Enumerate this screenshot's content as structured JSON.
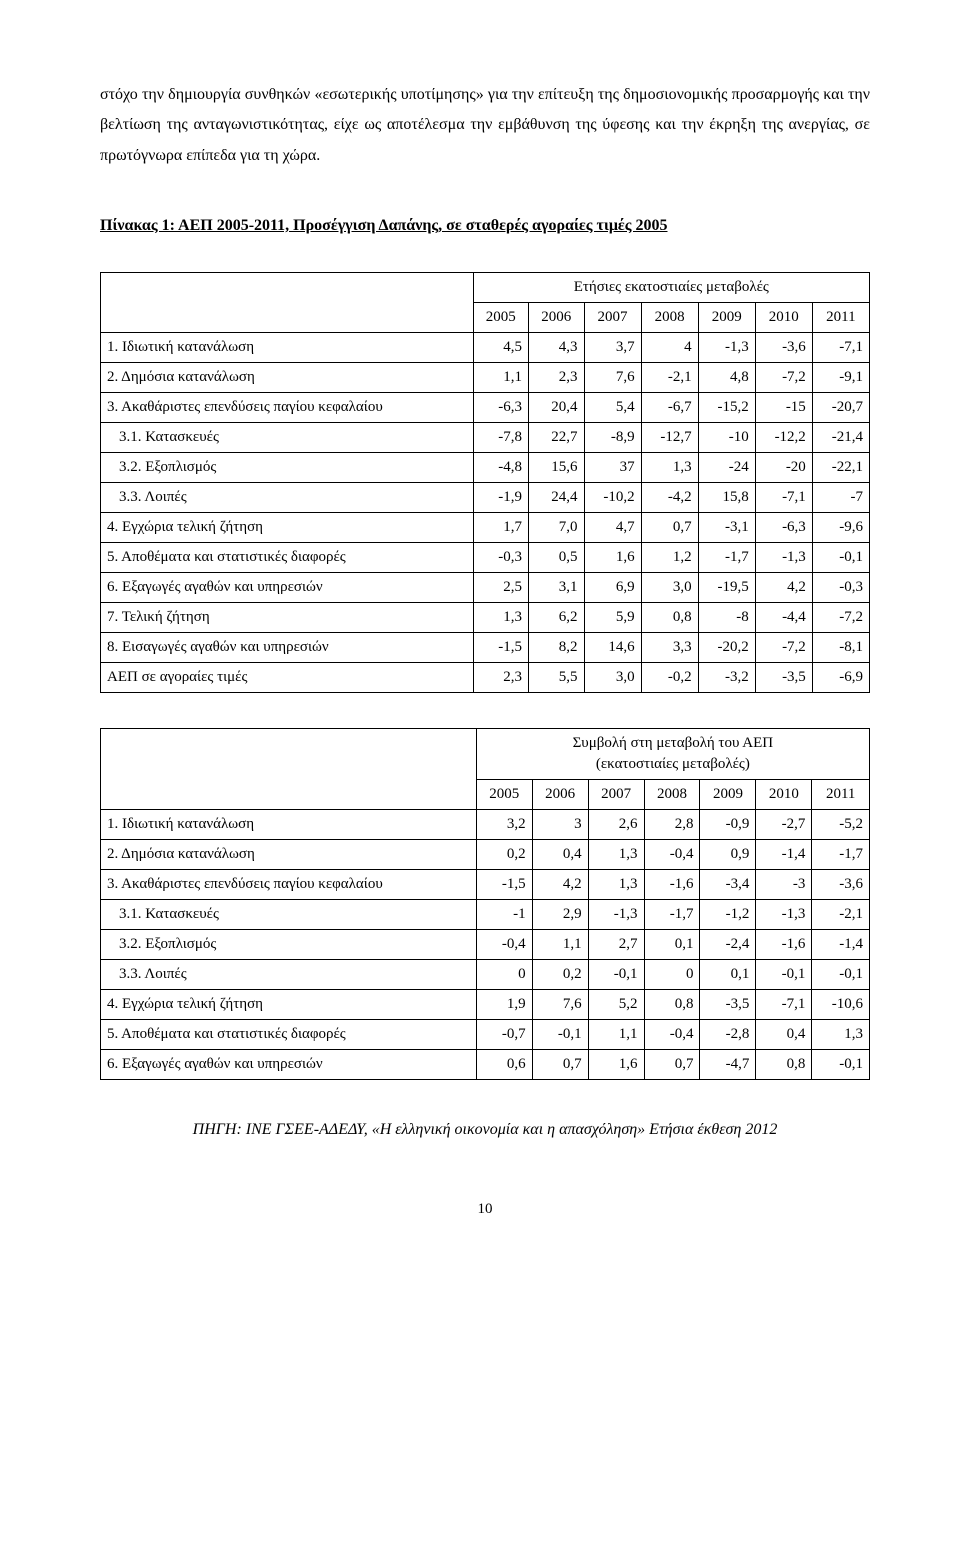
{
  "paragraph": "στόχο την δημιουργία συνθηκών «εσωτερικής υποτίμησης» για την επίτευξη της δημοσιονομικής προσαρμογής και την βελτίωση της ανταγωνιστικότητας, είχε ως αποτέλεσμα την εμβάθυνση της ύφεσης και την έκρηξη της ανεργίας, σε πρωτόγνωρα επίπεδα για τη χώρα.",
  "heading": "Πίνακας 1: ΑΕΠ 2005-2011, Προσέγγιση Δαπάνης, σε σταθερές αγοραίες τιμές 2005",
  "years": [
    "2005",
    "2006",
    "2007",
    "2008",
    "2009",
    "2010",
    "2011"
  ],
  "table1": {
    "spanhdr": "Ετήσιες εκατοστιαίες μεταβολές",
    "rows": [
      {
        "label": "1. Ιδιωτική κατανάλωση",
        "vals": [
          "4,5",
          "4,3",
          "3,7",
          "4",
          "-1,3",
          "-3,6",
          "-7,1"
        ]
      },
      {
        "label": "2. Δημόσια κατανάλωση",
        "vals": [
          "1,1",
          "2,3",
          "7,6",
          "-2,1",
          "4,8",
          "-7,2",
          "-9,1"
        ]
      },
      {
        "label": "3. Ακαθάριστες επενδύσεις παγίου κεφαλαίου",
        "vals": [
          "-6,3",
          "20,4",
          "5,4",
          "-6,7",
          "-15,2",
          "-15",
          "-20,7"
        ]
      },
      {
        "label": "3.1. Κατασκευές",
        "indent": true,
        "vals": [
          "-7,8",
          "22,7",
          "-8,9",
          "-12,7",
          "-10",
          "-12,2",
          "-21,4"
        ]
      },
      {
        "label": "3.2. Εξοπλισμός",
        "indent": true,
        "vals": [
          "-4,8",
          "15,6",
          "37",
          "1,3",
          "-24",
          "-20",
          "-22,1"
        ]
      },
      {
        "label": "3.3. Λοιπές",
        "indent": true,
        "vals": [
          "-1,9",
          "24,4",
          "-10,2",
          "-4,2",
          "15,8",
          "-7,1",
          "-7"
        ]
      },
      {
        "label": "4. Εγχώρια τελική ζήτηση",
        "vals": [
          "1,7",
          "7,0",
          "4,7",
          "0,7",
          "-3,1",
          "-6,3",
          "-9,6"
        ]
      },
      {
        "label": "5. Αποθέματα και στατιστικές διαφορές",
        "vals": [
          "-0,3",
          "0,5",
          "1,6",
          "1,2",
          "-1,7",
          "-1,3",
          "-0,1"
        ]
      },
      {
        "label": "6. Εξαγωγές αγαθών και υπηρεσιών",
        "vals": [
          "2,5",
          "3,1",
          "6,9",
          "3,0",
          "-19,5",
          "4,2",
          "-0,3"
        ]
      },
      {
        "label": "7. Τελική ζήτηση",
        "vals": [
          "1,3",
          "6,2",
          "5,9",
          "0,8",
          "-8",
          "-4,4",
          "-7,2"
        ]
      },
      {
        "label": "8. Εισαγωγές αγαθών και υπηρεσιών",
        "vals": [
          "-1,5",
          "8,2",
          "14,6",
          "3,3",
          "-20,2",
          "-7,2",
          "-8,1"
        ]
      },
      {
        "label": "ΑΕΠ σε αγοραίες τιμές",
        "vals": [
          "2,3",
          "5,5",
          "3,0",
          "-0,2",
          "-3,2",
          "-3,5",
          "-6,9"
        ]
      }
    ]
  },
  "table2": {
    "spanhdr1": "Συμβολή στη μεταβολή του ΑΕΠ",
    "spanhdr2": "(εκατοστιαίες μεταβολές)",
    "rows": [
      {
        "label": "1. Ιδιωτική κατανάλωση",
        "vals": [
          "3,2",
          "3",
          "2,6",
          "2,8",
          "-0,9",
          "-2,7",
          "-5,2"
        ]
      },
      {
        "label": "2. Δημόσια κατανάλωση",
        "vals": [
          "0,2",
          "0,4",
          "1,3",
          "-0,4",
          "0,9",
          "-1,4",
          "-1,7"
        ]
      },
      {
        "label": "3. Ακαθάριστες επενδύσεις παγίου κεφαλαίου",
        "vals": [
          "-1,5",
          "4,2",
          "1,3",
          "-1,6",
          "-3,4",
          "-3",
          "-3,6"
        ]
      },
      {
        "label": "3.1. Κατασκευές",
        "indent": true,
        "vals": [
          "-1",
          "2,9",
          "-1,3",
          "-1,7",
          "-1,2",
          "-1,3",
          "-2,1"
        ]
      },
      {
        "label": "3.2. Εξοπλισμός",
        "indent": true,
        "vals": [
          "-0,4",
          "1,1",
          "2,7",
          "0,1",
          "-2,4",
          "-1,6",
          "-1,4"
        ]
      },
      {
        "label": "3.3. Λοιπές",
        "indent": true,
        "vals": [
          "0",
          "0,2",
          "-0,1",
          "0",
          "0,1",
          "-0,1",
          "-0,1"
        ]
      },
      {
        "label": "4. Εγχώρια τελική ζήτηση",
        "vals": [
          "1,9",
          "7,6",
          "5,2",
          "0,8",
          "-3,5",
          "-7,1",
          "-10,6"
        ]
      },
      {
        "label": "5. Αποθέματα και στατιστικές διαφορές",
        "vals": [
          "-0,7",
          "-0,1",
          "1,1",
          "-0,4",
          "-2,8",
          "0,4",
          "1,3"
        ]
      },
      {
        "label": "6. Εξαγωγές αγαθών και υπηρεσιών",
        "vals": [
          "0,6",
          "0,7",
          "1,6",
          "0,7",
          "-4,7",
          "0,8",
          "-0,1"
        ]
      }
    ]
  },
  "source": "ΠΗΓΗ: ΙΝΕ ΓΣΕΕ-ΑΔΕΔΥ, «Η ελληνική οικονομία και η απασχόληση» Ετήσια έκθεση 2012",
  "pagenum": "10"
}
